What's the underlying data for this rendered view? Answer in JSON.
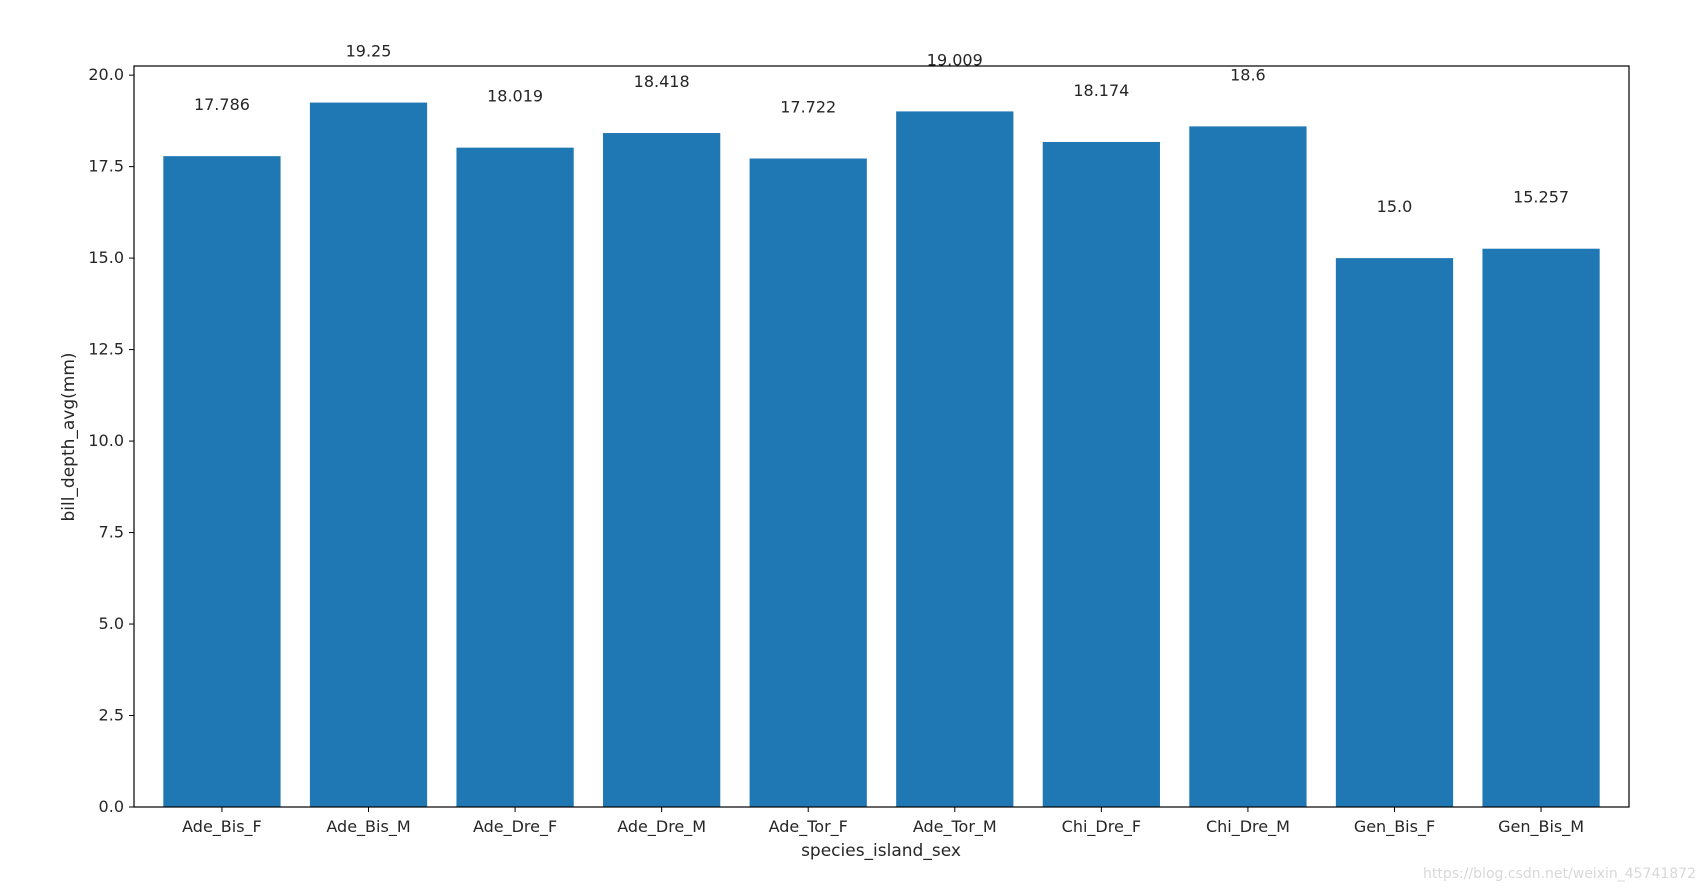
{
  "chart_data": {
    "type": "bar",
    "categories": [
      "Ade_Bis_F",
      "Ade_Bis_M",
      "Ade_Dre_F",
      "Ade_Dre_M",
      "Ade_Tor_F",
      "Ade_Tor_M",
      "Chi_Dre_F",
      "Chi_Dre_M",
      "Gen_Bis_F",
      "Gen_Bis_M"
    ],
    "values": [
      17.786,
      19.25,
      18.019,
      18.418,
      17.722,
      19.009,
      18.174,
      18.6,
      15.0,
      15.257
    ],
    "value_labels": [
      "17.786",
      "19.25",
      "18.019",
      "18.418",
      "17.722",
      "19.009",
      "18.174",
      "18.6",
      "15.0",
      "15.257"
    ],
    "xlabel": "species_island_sex",
    "ylabel": "bill_depth_avg(mm)",
    "ylim": [
      0,
      20.25
    ],
    "yticks": [
      0.0,
      2.5,
      5.0,
      7.5,
      10.0,
      12.5,
      15.0,
      17.5,
      20.0
    ],
    "ytick_labels": [
      "0.0",
      "2.5",
      "5.0",
      "7.5",
      "10.0",
      "12.5",
      "15.0",
      "17.5",
      "20.0"
    ],
    "grid": false,
    "bar_color": "#1f77b4"
  },
  "watermark": "https://blog.csdn.net/weixin_45741872"
}
